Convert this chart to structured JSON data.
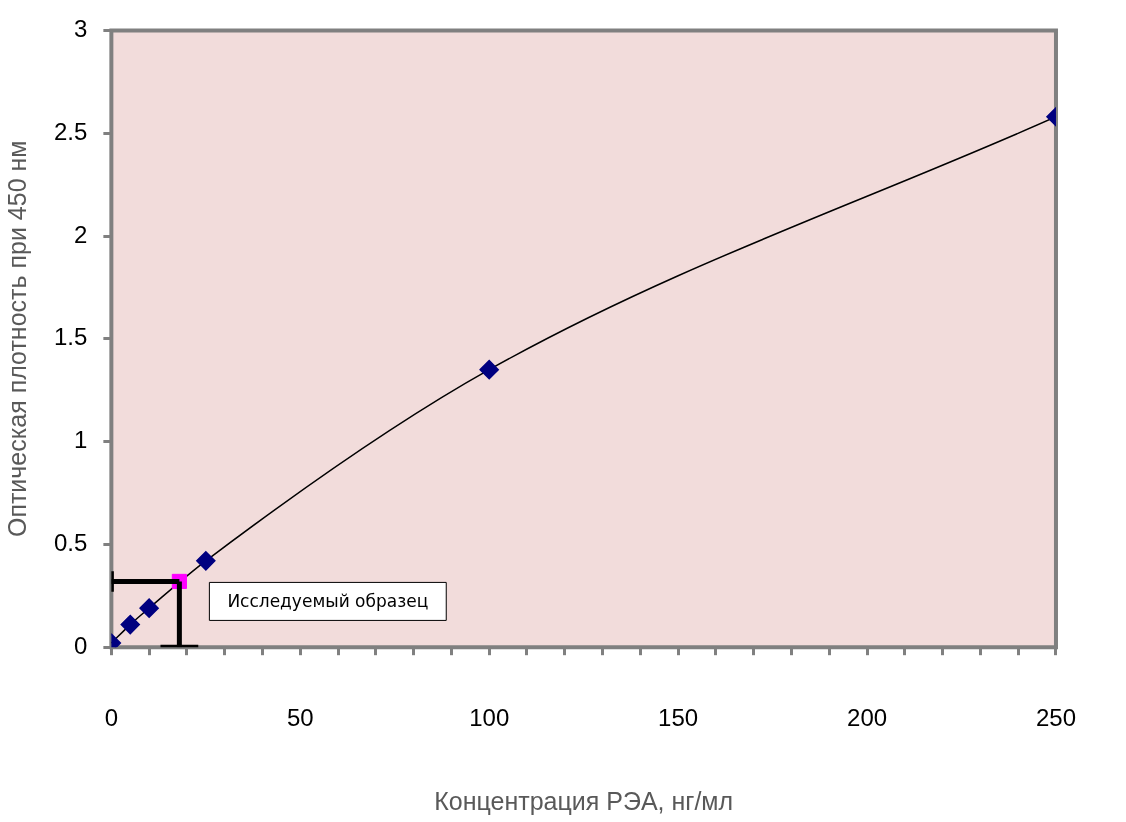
{
  "chart_data": {
    "type": "line",
    "xlabel": "Концентрация РЭА, нг/мл",
    "ylabel": "Оптическая плотность при 450 нм",
    "series": [
      {
        "type": "line",
        "color": "#000080",
        "x": [
          0,
          5,
          10,
          25,
          100,
          250
        ],
        "values": [
          0.02,
          0.11,
          0.19,
          0.42,
          1.35,
          2.58
        ],
        "marker": "diamond"
      },
      {
        "type": "scatter",
        "color": "#ff00ff",
        "x": [
          18
        ],
        "values": [
          0.32
        ],
        "marker": "square"
      },
      {
        "type": "line",
        "color": "#000000",
        "x": [
          0,
          18
        ],
        "values": [
          0.32,
          0.32
        ],
        "marker": "none"
      },
      {
        "type": "line",
        "color": "#000000",
        "x": [
          18,
          18
        ],
        "values": [
          0.32,
          0
        ],
        "marker": "none"
      },
      {
        "type": "line",
        "color": "#000000",
        "x": [
          0,
          0
        ],
        "values": [
          0.27,
          0.37
        ],
        "marker": "none"
      },
      {
        "type": "line",
        "color": "#000000",
        "x": [
          13,
          23
        ],
        "values": [
          0,
          0
        ],
        "marker": "none"
      }
    ],
    "annotations": [
      {
        "text": "Исследуемый образец",
        "x": 18,
        "y": 0.32
      }
    ],
    "xlim": [
      0,
      250
    ],
    "ylim": [
      0,
      3
    ],
    "xticks": [
      0,
      {
        "value": 10,
        "label": null
      },
      {
        "value": 20,
        "label": null
      },
      {
        "value": 30,
        "label": null
      },
      {
        "value": 40,
        "label": null
      },
      50,
      {
        "value": 60,
        "label": null
      },
      {
        "value": 70,
        "label": null
      },
      {
        "value": 80,
        "label": null
      },
      {
        "value": 90,
        "label": null
      },
      100,
      {
        "value": 110,
        "label": null
      },
      {
        "value": 120,
        "label": null
      },
      {
        "value": 130,
        "label": null
      },
      {
        "value": 140,
        "label": null
      },
      150,
      {
        "value": 160,
        "label": null
      },
      {
        "value": 170,
        "label": null
      },
      {
        "value": 180,
        "label": null
      },
      {
        "value": 190,
        "label": null
      },
      200,
      {
        "value": 210,
        "label": null
      },
      {
        "value": 220,
        "label": null
      },
      {
        "value": 230,
        "label": null
      },
      {
        "value": 240,
        "label": null
      },
      250
    ],
    "yticks": [
      0,
      0.5,
      1,
      1.5,
      2,
      2.5,
      3
    ],
    "grid": false,
    "legend": false
  }
}
